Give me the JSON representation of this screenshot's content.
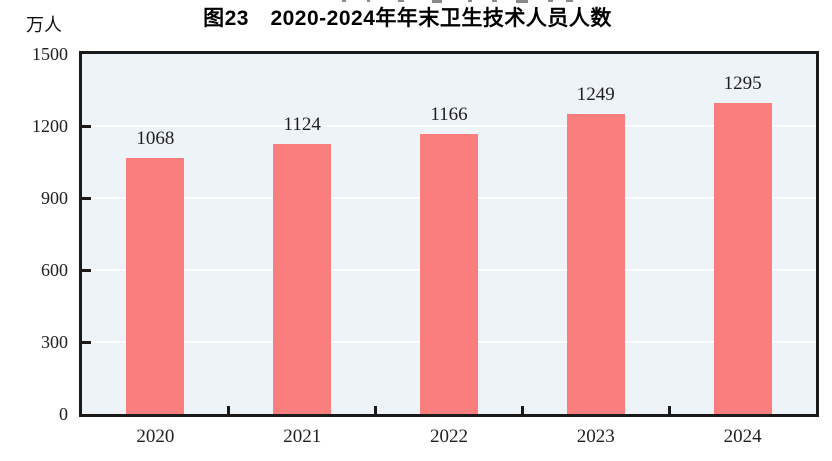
{
  "chart_data": {
    "type": "bar",
    "title": "图23　2020-2024年年末卫生技术人员人数",
    "y_unit_label": "万人",
    "categories": [
      "2020",
      "2021",
      "2022",
      "2023",
      "2024"
    ],
    "values": [
      1068,
      1124,
      1166,
      1249,
      1295
    ],
    "value_labels": [
      "1068",
      "1124",
      "1166",
      "1249",
      "1295"
    ],
    "ylim": [
      0,
      1500
    ],
    "yticks": [
      0,
      300,
      600,
      900,
      1200,
      1500
    ],
    "ytick_labels": [
      "0",
      "300",
      "600",
      "900",
      "1200",
      "1500"
    ],
    "grid": "horizontal",
    "legend_position": "none",
    "colors": {
      "bar": "#FA7E7E",
      "plot_background": "#EDF3F7",
      "gridline": "#FFFFFF",
      "axis": "#1A1A1A",
      "text": "#1F1F1F"
    }
  }
}
